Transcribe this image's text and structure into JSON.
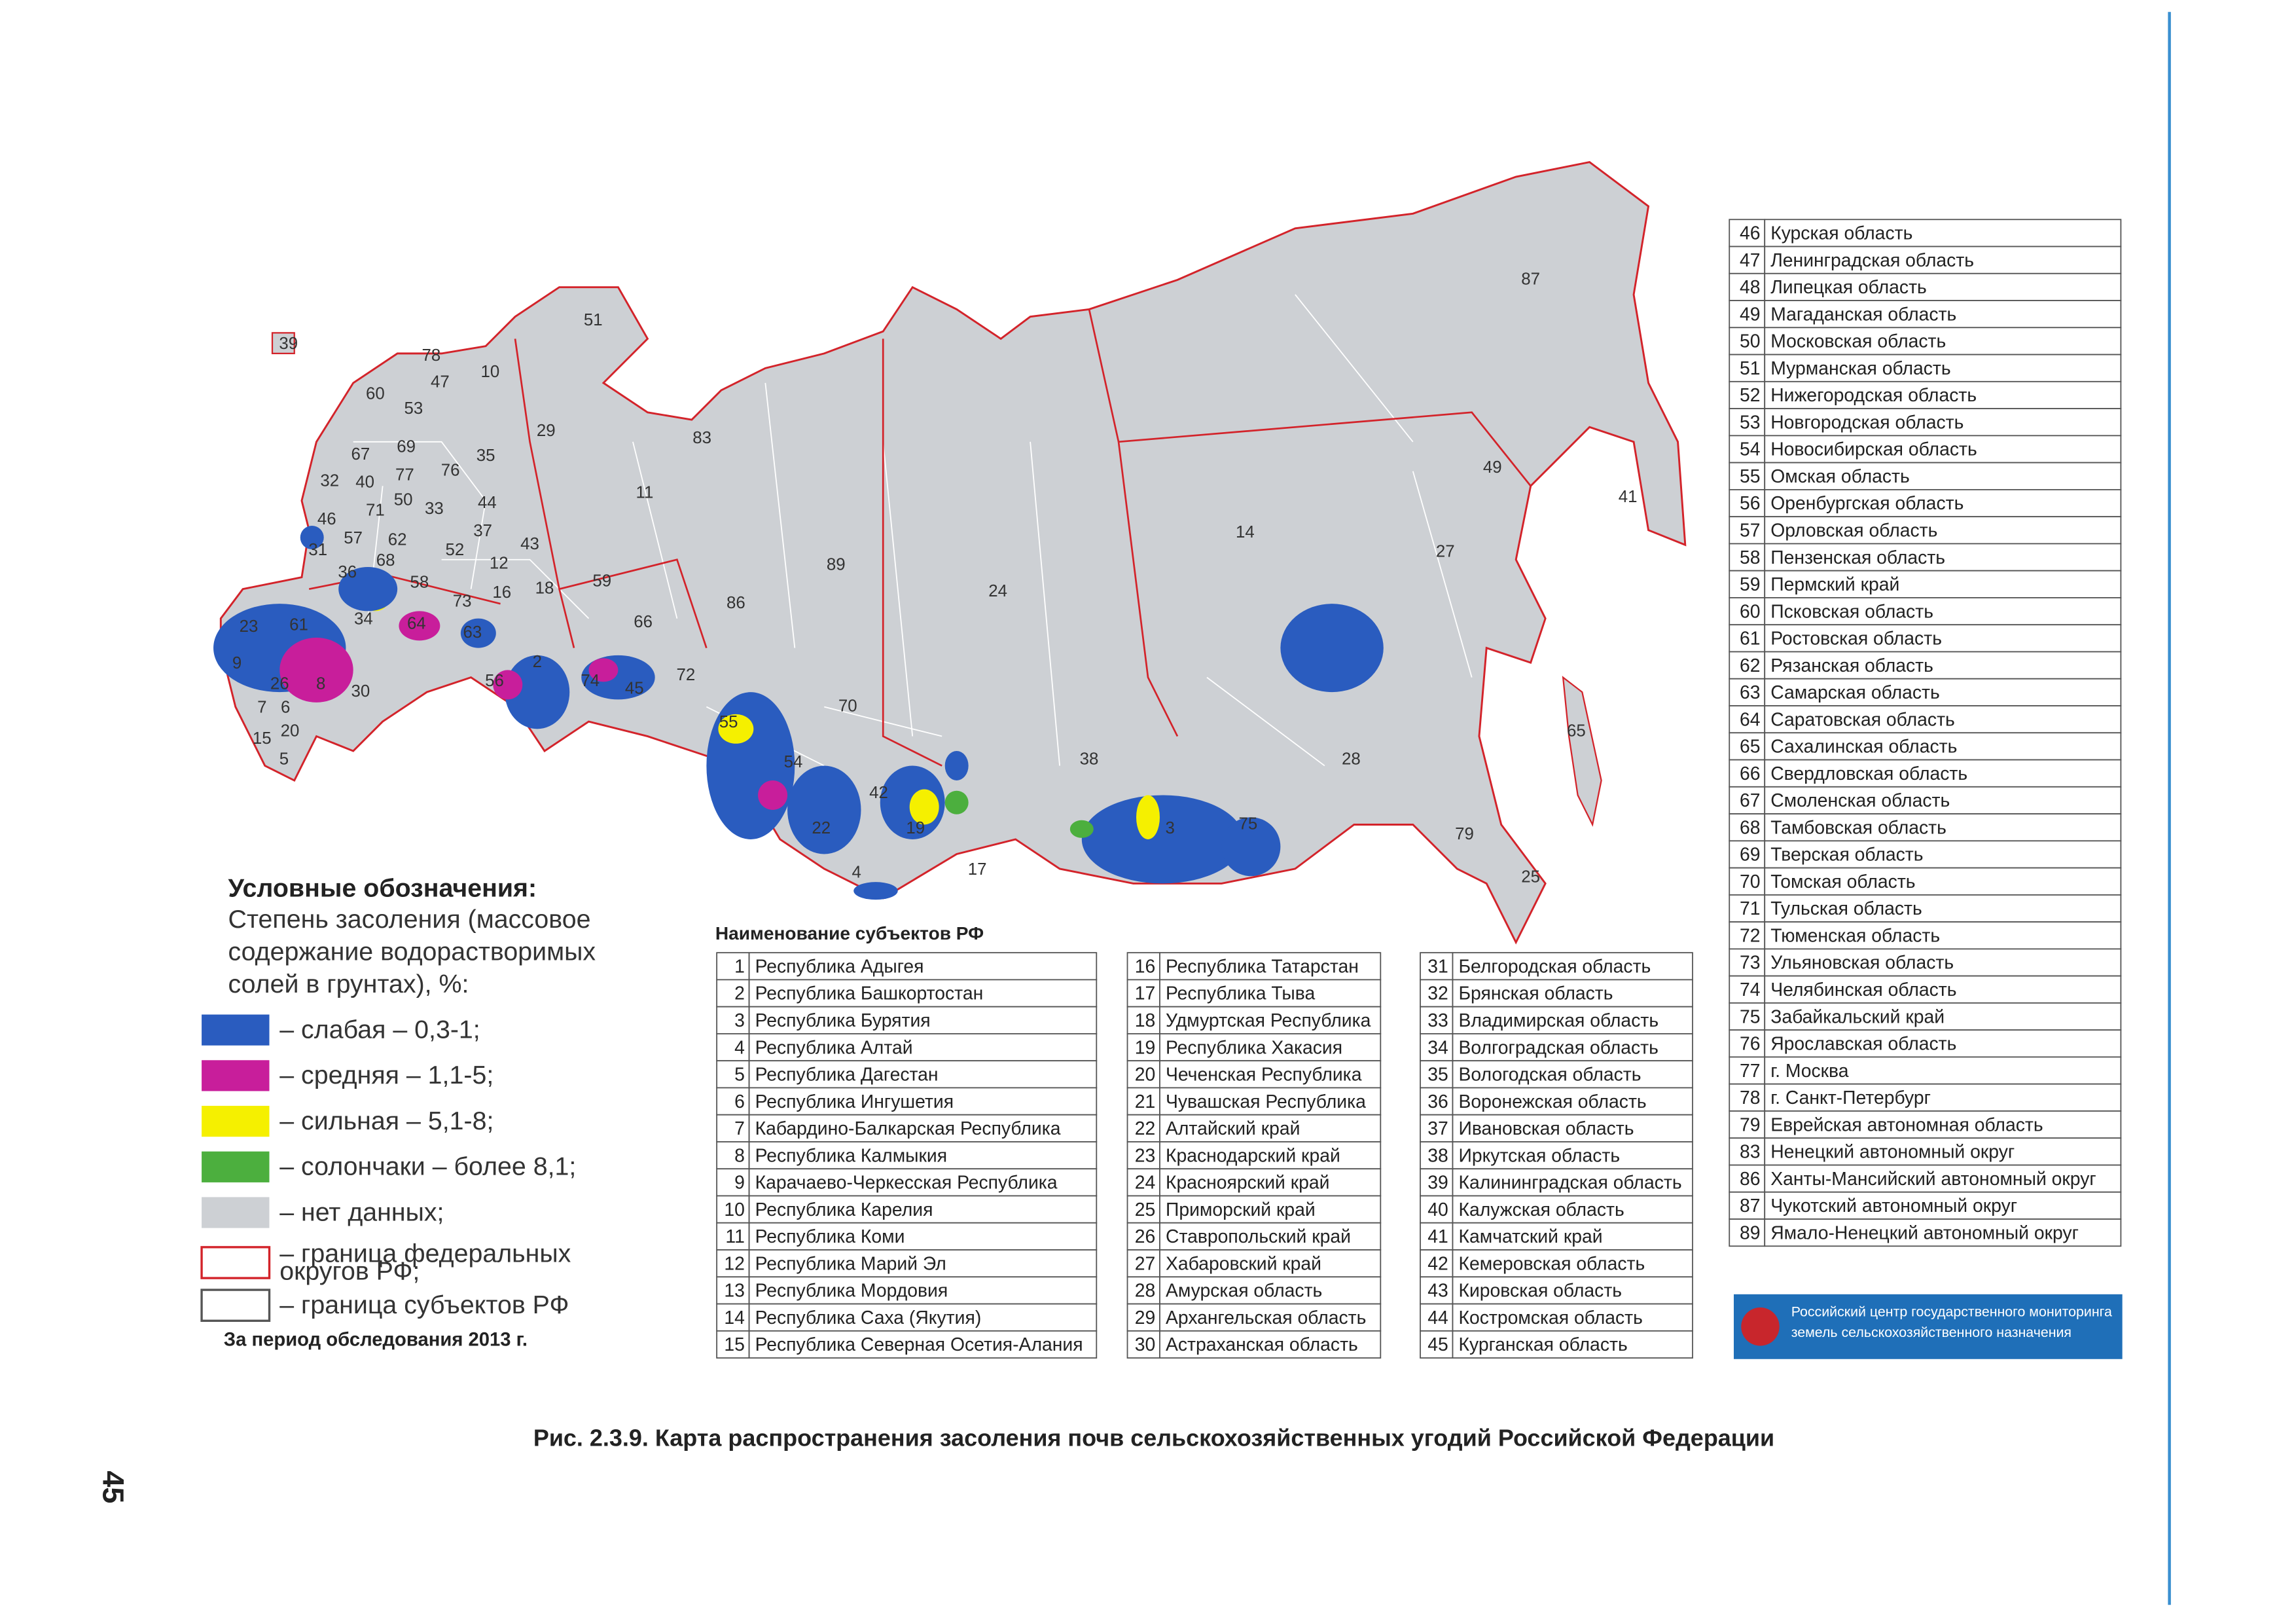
{
  "legend": {
    "title": "Условные обозначения:",
    "subtitle_lines": [
      "Степень засоления (массовое",
      "содержание водорастворимых",
      "солей в грунтах), %:"
    ],
    "items": [
      {
        "lines": [
          "– слабая – 0,3-1;"
        ],
        "color": "#2a5cbf"
      },
      {
        "lines": [
          "– средняя – 1,1-5;"
        ],
        "color": "#c81e9b"
      },
      {
        "lines": [
          "– сильная – 5,1-8;"
        ],
        "color": "#f5f000"
      },
      {
        "lines": [
          "– солончаки – более 8,1;"
        ],
        "color": "#4caf3e"
      },
      {
        "lines": [
          "– нет данных;"
        ],
        "color": "#cdd0d4"
      },
      {
        "lines": [
          "– граница федеральных",
          "округов РФ;"
        ],
        "color": "#d3232a"
      },
      {
        "lines": [
          "– граница субъектов РФ"
        ],
        "color": "#555555"
      }
    ],
    "note": "За период обследования 2013 г."
  },
  "tables_heading": "Наименование субъектов РФ",
  "tables": [
    {
      "rows": [
        [
          1,
          "Республика Адыгея"
        ],
        [
          2,
          "Республика Башкортостан"
        ],
        [
          3,
          "Республика Бурятия"
        ],
        [
          4,
          "Республика Алтай"
        ],
        [
          5,
          "Республика Дагестан"
        ],
        [
          6,
          "Республика Ингушетия"
        ],
        [
          7,
          "Кабардино-Балкарская Республика"
        ],
        [
          8,
          "Республика Калмыкия"
        ],
        [
          9,
          "Карачаево-Черкесская Республика"
        ],
        [
          10,
          "Республика Карелия"
        ],
        [
          11,
          "Республика Коми"
        ],
        [
          12,
          "Республика Марий Эл"
        ],
        [
          13,
          "Республика Мордовия"
        ],
        [
          14,
          "Республика Саха (Якутия)"
        ],
        [
          15,
          "Республика Северная Осетия-Алания"
        ]
      ]
    },
    {
      "rows": [
        [
          16,
          "Республика Татарстан"
        ],
        [
          17,
          "Республика Тыва"
        ],
        [
          18,
          "Удмуртская Республика"
        ],
        [
          19,
          "Республика Хакасия"
        ],
        [
          20,
          "Чеченская Республика"
        ],
        [
          21,
          "Чувашская Республика"
        ],
        [
          22,
          "Алтайский край"
        ],
        [
          23,
          "Краснодарский край"
        ],
        [
          24,
          "Красноярский край"
        ],
        [
          25,
          "Приморский край"
        ],
        [
          26,
          "Ставропольский край"
        ],
        [
          27,
          "Хабаровский край"
        ],
        [
          28,
          "Амурская область"
        ],
        [
          29,
          "Архангельская область"
        ],
        [
          30,
          "Астраханская область"
        ]
      ]
    },
    {
      "rows": [
        [
          31,
          "Белгородская область"
        ],
        [
          32,
          "Брянская область"
        ],
        [
          33,
          "Владимирская область"
        ],
        [
          34,
          "Волгоградская область"
        ],
        [
          35,
          "Вологодская область"
        ],
        [
          36,
          "Воронежская область"
        ],
        [
          37,
          "Ивановская область"
        ],
        [
          38,
          "Иркутская область"
        ],
        [
          39,
          "Калининградская область"
        ],
        [
          40,
          "Калужская область"
        ],
        [
          41,
          "Камчатский край"
        ],
        [
          42,
          "Кемеровская область"
        ],
        [
          43,
          "Кировская область"
        ],
        [
          44,
          "Костромская область"
        ],
        [
          45,
          "Курганская область"
        ]
      ]
    },
    {
      "rows": [
        [
          46,
          "Курская область"
        ],
        [
          47,
          "Ленинградская область"
        ],
        [
          48,
          "Липецкая область"
        ],
        [
          49,
          "Магаданская область"
        ],
        [
          50,
          "Московская область"
        ],
        [
          51,
          "Мурманская область"
        ],
        [
          52,
          "Нижегородская область"
        ],
        [
          53,
          "Новгородская область"
        ],
        [
          54,
          "Новосибирская область"
        ],
        [
          55,
          "Омская область"
        ],
        [
          56,
          "Оренбургская область"
        ],
        [
          57,
          "Орловская область"
        ],
        [
          58,
          "Пензенская область"
        ],
        [
          59,
          "Пермский край"
        ],
        [
          60,
          "Псковская область"
        ],
        [
          61,
          "Ростовская область"
        ],
        [
          62,
          "Рязанская область"
        ],
        [
          63,
          "Самарская область"
        ],
        [
          64,
          "Саратовская область"
        ],
        [
          65,
          "Сахалинская область"
        ],
        [
          66,
          "Свердловская область"
        ],
        [
          67,
          "Смоленская область"
        ],
        [
          68,
          "Тамбовская область"
        ],
        [
          69,
          "Тверская область"
        ],
        [
          70,
          "Томская область"
        ],
        [
          71,
          "Тульская область"
        ],
        [
          72,
          "Тюменская область"
        ],
        [
          73,
          "Ульяновская область"
        ],
        [
          74,
          "Челябинская область"
        ],
        [
          75,
          "Забайкальский край"
        ],
        [
          76,
          "Ярославская область"
        ],
        [
          77,
          "г. Москва"
        ],
        [
          78,
          "г. Санкт-Петербург"
        ],
        [
          79,
          "Еврейская автономная область"
        ],
        [
          83,
          "Ненецкий автономный округ"
        ],
        [
          86,
          "Ханты-Мансийский автономный округ"
        ],
        [
          87,
          "Чукотский автономный округ"
        ],
        [
          89,
          "Ямало-Ненецкий автономный округ"
        ]
      ]
    }
  ],
  "map": {
    "labels": [
      "39",
      "78",
      "47",
      "10",
      "51",
      "60",
      "53",
      "29",
      "83",
      "87",
      "67",
      "69",
      "76",
      "35",
      "77",
      "32",
      "40",
      "46",
      "71",
      "50",
      "33",
      "44",
      "57",
      "62",
      "37",
      "52",
      "43",
      "31",
      "36",
      "68",
      "12",
      "58",
      "16",
      "18",
      "59",
      "73",
      "23",
      "61",
      "34",
      "64",
      "63",
      "9",
      "26",
      "8",
      "30",
      "7",
      "6",
      "15",
      "20",
      "5",
      "56",
      "2",
      "74",
      "45",
      "72",
      "66",
      "86",
      "11",
      "89",
      "24",
      "14",
      "49",
      "41",
      "27",
      "70",
      "55",
      "54",
      "42",
      "22",
      "19",
      "38",
      "28",
      "3",
      "75",
      "65",
      "79",
      "25",
      "4",
      "17"
    ]
  },
  "logo": {
    "lines": [
      "Российский центр государственного мониторинга",
      "земель сельскохозяйственного назначения"
    ]
  },
  "caption": "Рис. 2.3.9. Карта распространения засоления почв сельскохозяйственных угодий Российской Федерации",
  "page_number": "45"
}
